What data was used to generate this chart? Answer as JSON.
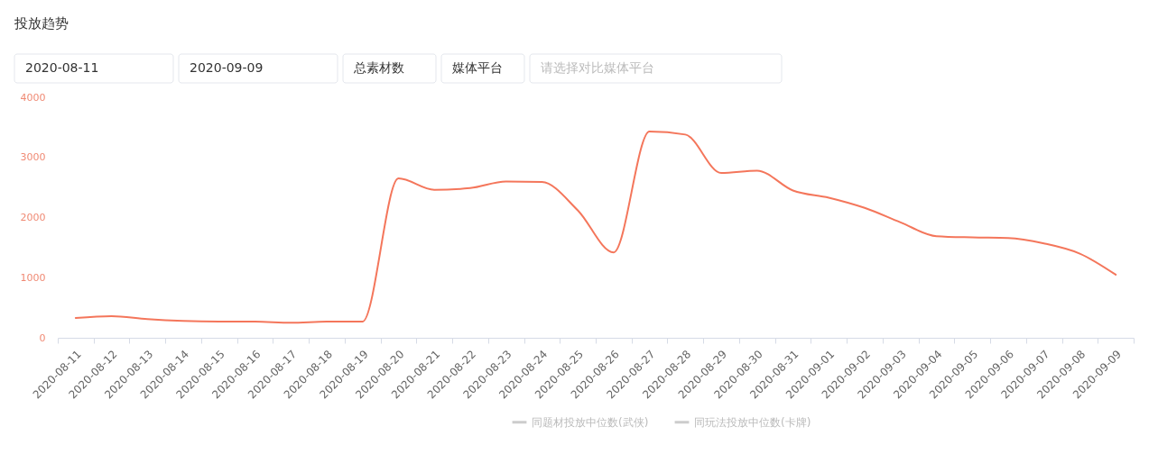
{
  "chart_data": {
    "type": "line",
    "title": "投放趋势",
    "annotations": [
      "2020-08-11",
      "2020-09-09",
      "总素材数",
      "媒体平台",
      "请选择对比媒体平台"
    ],
    "categories": [
      "2020-08-11",
      "2020-08-12",
      "2020-08-13",
      "2020-08-14",
      "2020-08-15",
      "2020-08-16",
      "2020-08-17",
      "2020-08-18",
      "2020-08-19",
      "2020-08-20",
      "2020-08-21",
      "2020-08-22",
      "2020-08-23",
      "2020-08-24",
      "2020-08-25",
      "2020-08-26",
      "2020-08-27",
      "2020-08-28",
      "2020-08-29",
      "2020-08-30",
      "2020-08-31",
      "2020-09-01",
      "2020-09-02",
      "2020-09-03",
      "2020-09-04",
      "2020-09-05",
      "2020-09-06",
      "2020-09-07",
      "2020-09-08",
      "2020-09-09"
    ],
    "series": [
      {
        "color": "#f4765b",
        "values": [
          330,
          360,
          310,
          280,
          270,
          270,
          250,
          270,
          270,
          2650,
          2460,
          2490,
          2600,
          2590,
          2120,
          1420,
          3430,
          3380,
          2740,
          2780,
          2450,
          2330,
          2160,
          1920,
          1690,
          1670,
          1660,
          1570,
          1400,
          1050
        ]
      },
      {
        "name": "同题材投放中位数(武侠)",
        "color": "#cccccc",
        "values": [
          null,
          null,
          null,
          null,
          null,
          null,
          null,
          null,
          null,
          null,
          null,
          null,
          null,
          null,
          null,
          null,
          null,
          null,
          null,
          null,
          null,
          null,
          null,
          null,
          null,
          null,
          null,
          null,
          null,
          null
        ]
      },
      {
        "name": "同玩法投放中位数(卡牌)",
        "color": "#cccccc",
        "values": [
          null,
          null,
          null,
          null,
          null,
          null,
          null,
          null,
          null,
          null,
          null,
          null,
          null,
          null,
          null,
          null,
          null,
          null,
          null,
          null,
          null,
          null,
          null,
          null,
          null,
          null,
          null,
          null,
          null,
          null
        ]
      }
    ],
    "ylim": [
      0,
      4000
    ],
    "yticks": [
      0,
      1000,
      2000,
      3000,
      4000
    ],
    "legend": "bottom",
    "grid": false,
    "marker": "none"
  }
}
